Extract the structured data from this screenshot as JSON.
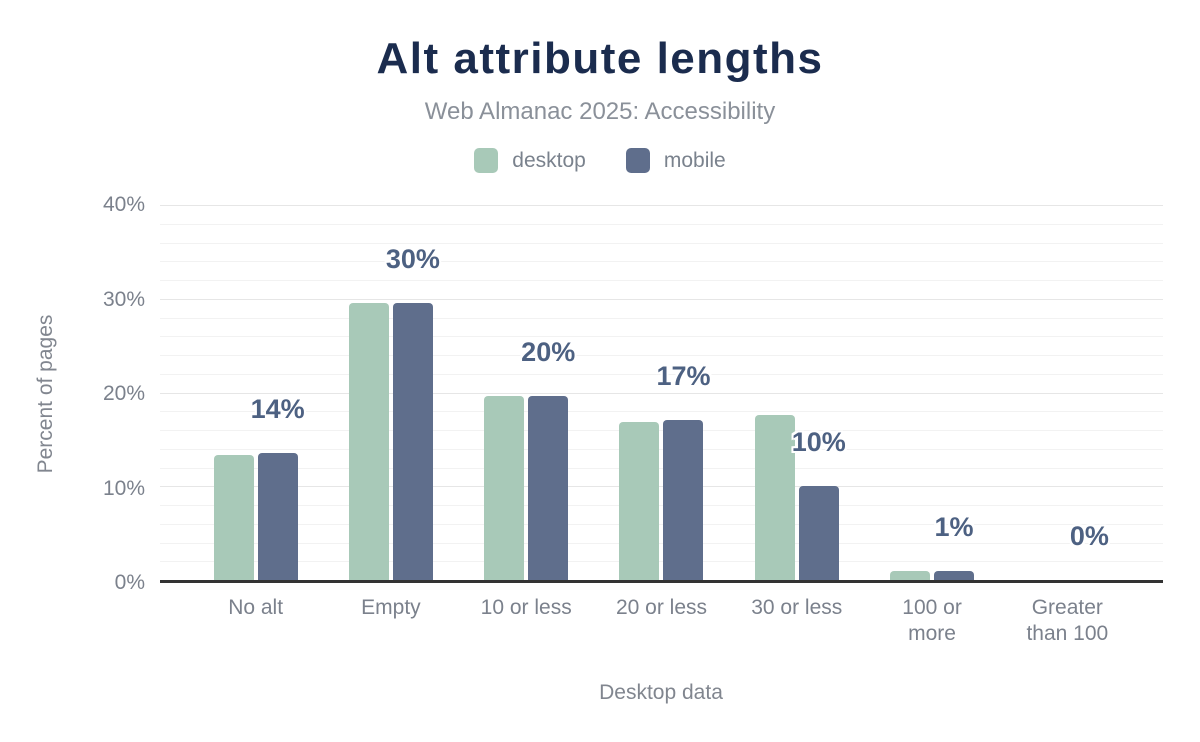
{
  "header": {
    "title": "Alt attribute lengths",
    "subtitle": "Web Almanac 2025: Accessibility"
  },
  "colors": {
    "title": "#1b2c4e",
    "subtitle": "#8a9099",
    "desktop": "#a8c9b8",
    "mobile": "#5f6e8c",
    "value_label": "#4d6182",
    "tick_label": "#7b818c",
    "axis_line": "#333333",
    "grid_major": "#e6e6e6",
    "grid_minor": "#f2f2f2"
  },
  "chart_data": {
    "type": "bar",
    "title": "Alt attribute lengths",
    "subtitle": "Web Almanac 2025: Accessibility",
    "xlabel": "Desktop data",
    "ylabel": "Percent of pages",
    "ylim": [
      0,
      40
    ],
    "y_major_step": 10,
    "y_minor_step": 2,
    "y_tick_labels": [
      "0%",
      "10%",
      "20%",
      "30%",
      "40%"
    ],
    "grid": true,
    "legend_position": "top",
    "categories": [
      "No alt",
      "Empty",
      "10 or less",
      "20 or less",
      "30 or less",
      "100 or\nmore",
      "Greater\nthan 100"
    ],
    "series": [
      {
        "name": "desktop",
        "color": "#a8c9b8",
        "values": [
          13.3,
          29.5,
          19.6,
          16.9,
          17.6,
          1,
          0
        ]
      },
      {
        "name": "mobile",
        "color": "#5f6e8c",
        "values": [
          13.6,
          29.5,
          19.6,
          17.1,
          10,
          1,
          0
        ]
      }
    ],
    "value_labels": [
      "14%",
      "30%",
      "20%",
      "17%",
      "10%",
      "1%",
      "0%"
    ]
  }
}
